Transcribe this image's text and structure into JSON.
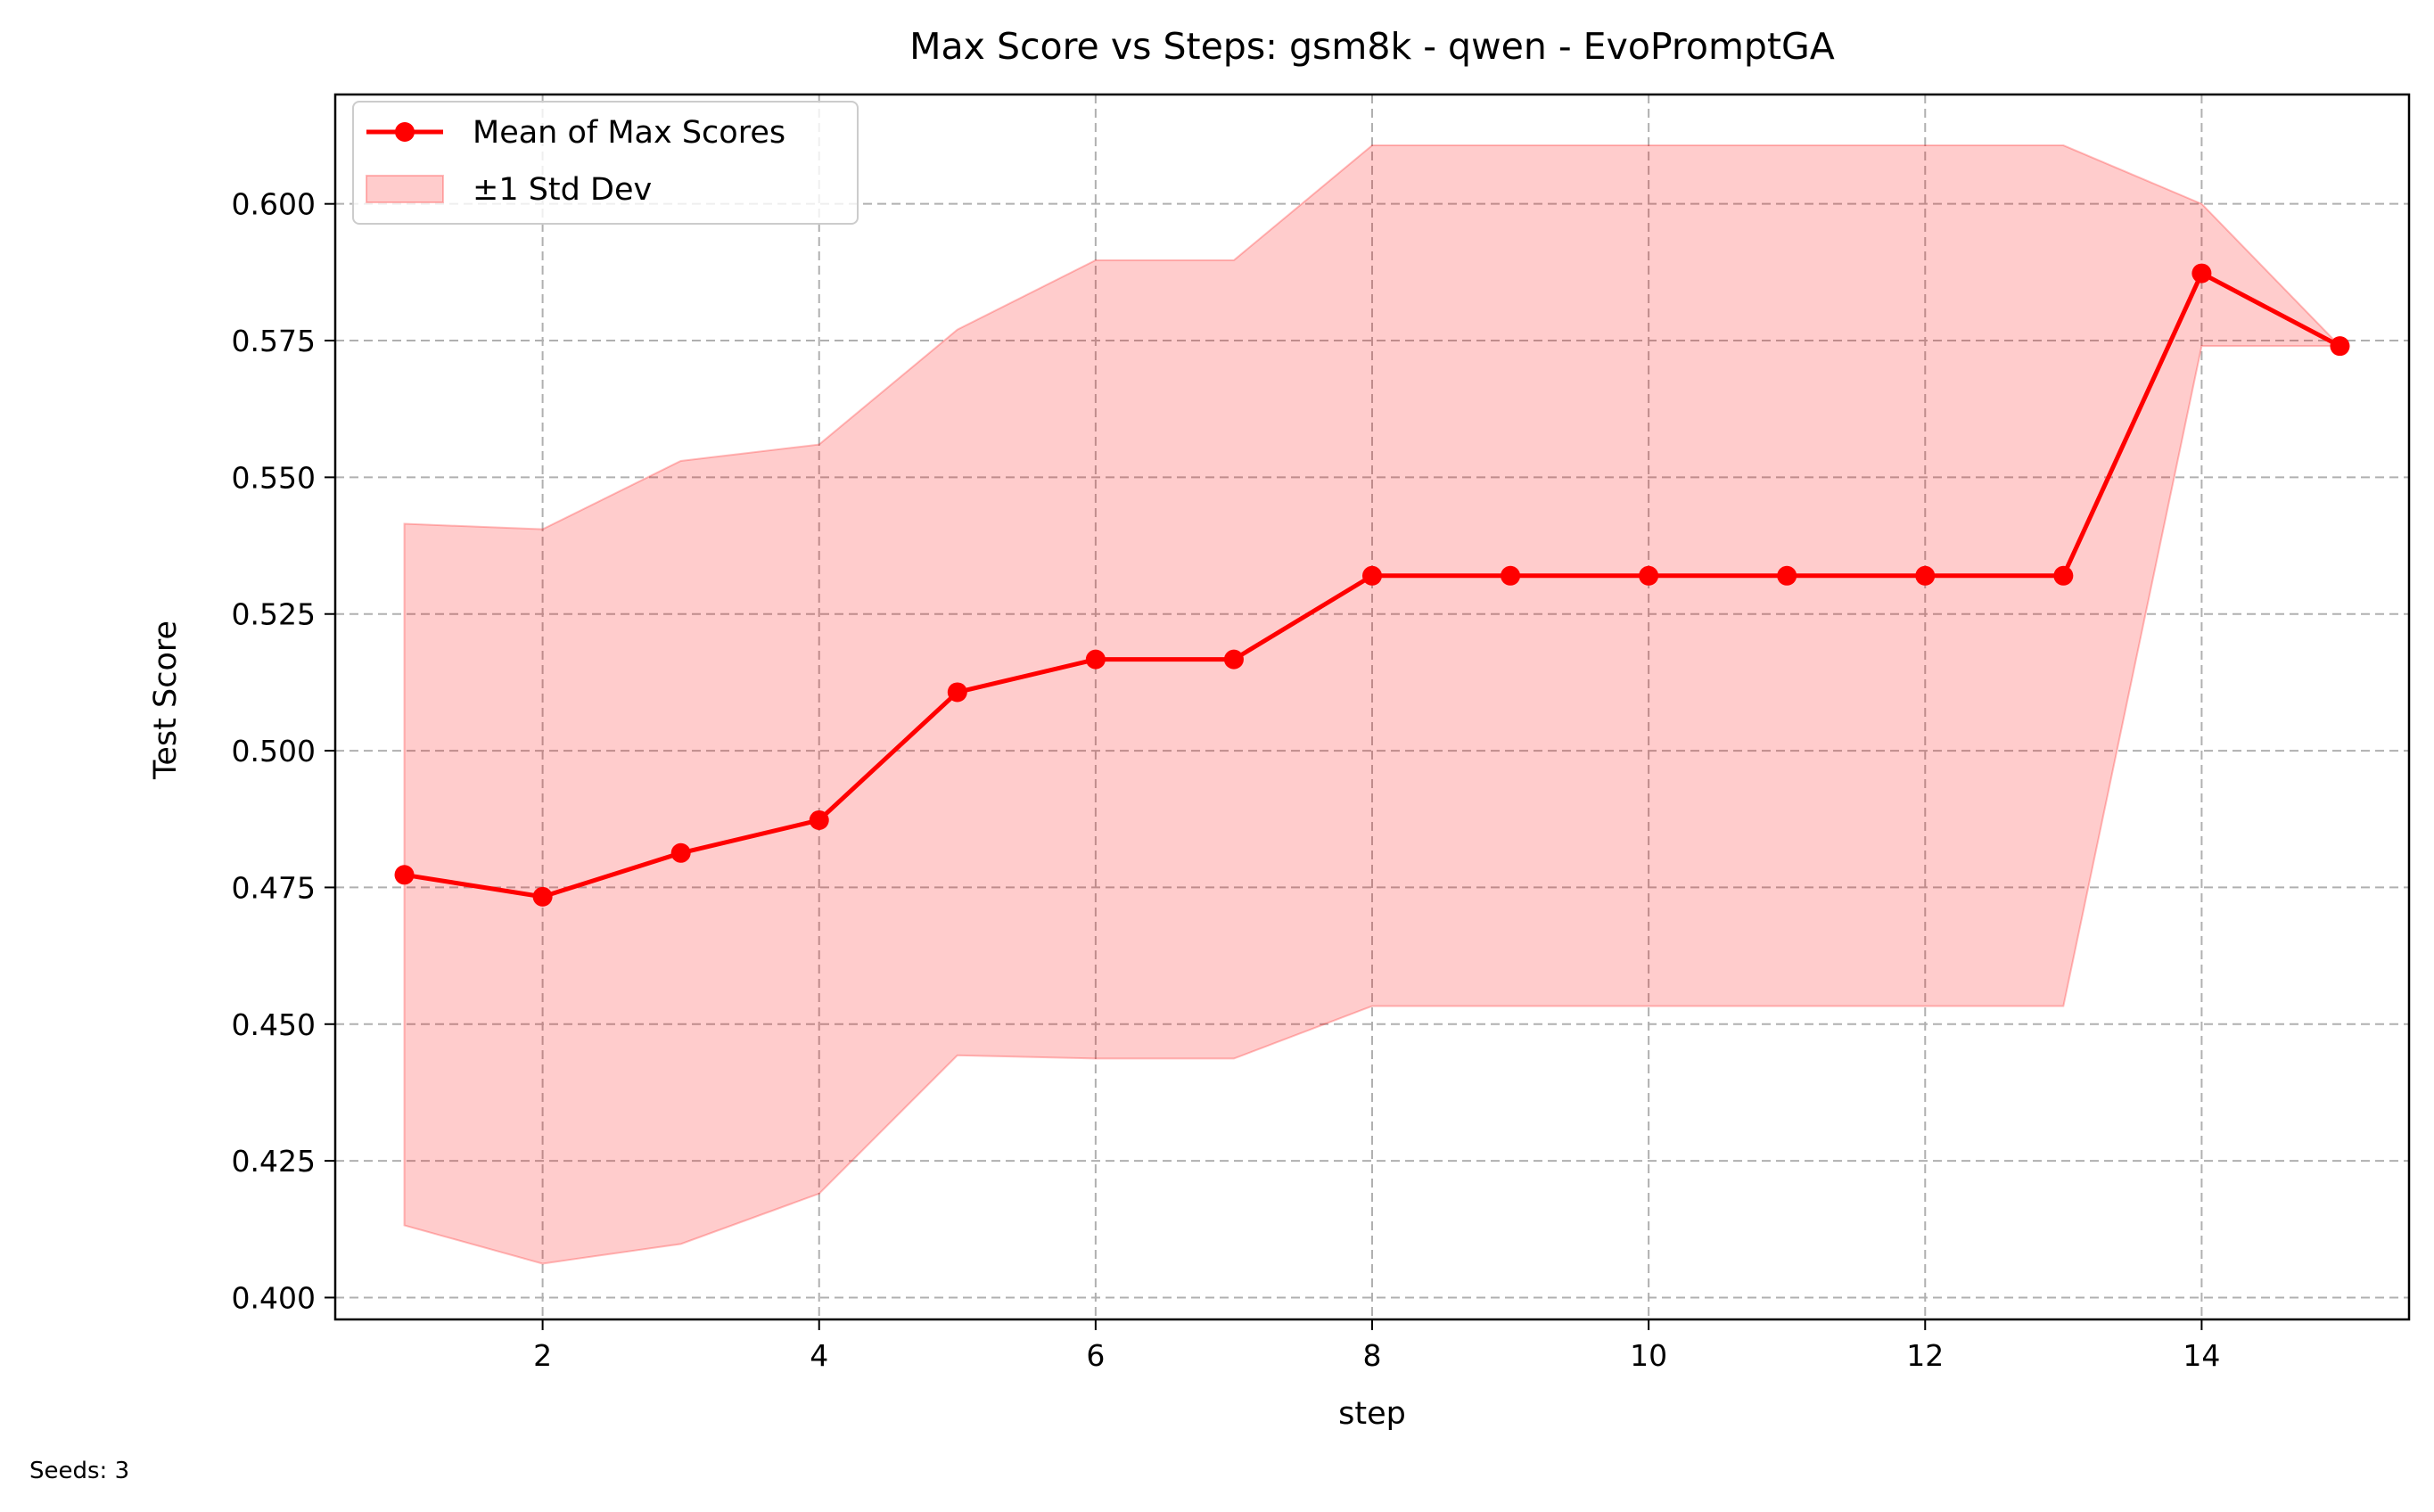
{
  "chart_data": {
    "type": "line",
    "title": "Max Score vs Steps: gsm8k - qwen - EvoPromptGA",
    "xlabel": "step",
    "ylabel": "Test Score",
    "xlim": [
      0.5,
      15.5
    ],
    "ylim": [
      0.396,
      0.62
    ],
    "xticks": [
      2,
      4,
      6,
      8,
      10,
      12,
      14
    ],
    "xtick_labels": [
      "2",
      "4",
      "6",
      "8",
      "10",
      "12",
      "14"
    ],
    "yticks": [
      0.4,
      0.425,
      0.45,
      0.475,
      0.5,
      0.525,
      0.55,
      0.575,
      0.6
    ],
    "ytick_labels": [
      "0.400",
      "0.425",
      "0.450",
      "0.475",
      "0.500",
      "0.525",
      "0.550",
      "0.575",
      "0.600"
    ],
    "grid": true,
    "legend_position": "top-left",
    "x": [
      1,
      2,
      3,
      4,
      5,
      6,
      7,
      8,
      9,
      10,
      11,
      12,
      13,
      14,
      15
    ],
    "series": [
      {
        "name": "Mean of Max Scores",
        "color": "#ff0000",
        "values": [
          0.4773,
          0.4733,
          0.4813,
          0.4873,
          0.5107,
          0.5167,
          0.5167,
          0.532,
          0.532,
          0.532,
          0.532,
          0.532,
          0.532,
          0.5873,
          0.574
        ]
      }
    ],
    "band": {
      "name": "±1 Std Dev",
      "fill_color": "#ff0000",
      "fill_opacity": 0.2,
      "upper": [
        0.5415,
        0.5405,
        0.553,
        0.556,
        0.577,
        0.5897,
        0.5897,
        0.6107,
        0.6107,
        0.6107,
        0.6107,
        0.6107,
        0.6107,
        0.6,
        0.574
      ],
      "lower": [
        0.4132,
        0.4062,
        0.4098,
        0.419,
        0.4443,
        0.4437,
        0.4437,
        0.4533,
        0.4533,
        0.4533,
        0.4533,
        0.4533,
        0.4533,
        0.574,
        0.574
      ]
    }
  },
  "footnote": "Seeds: 3"
}
